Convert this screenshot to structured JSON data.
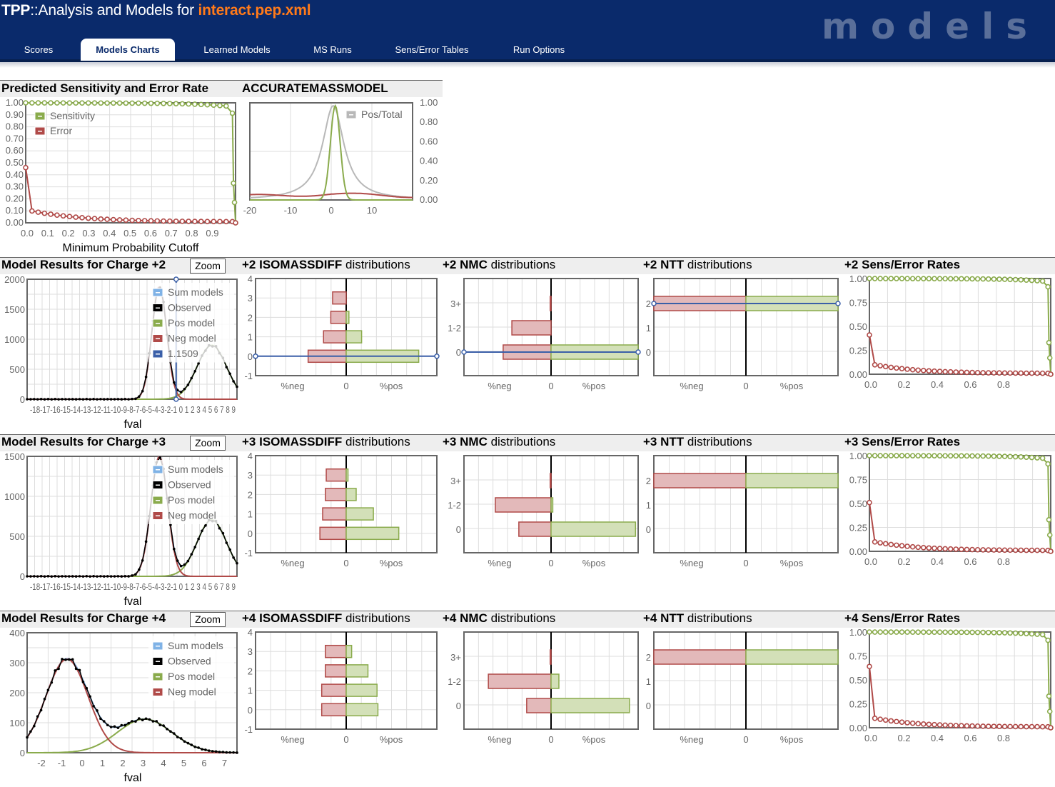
{
  "header": {
    "tpp": "TPP",
    "sep": "::",
    "title_prefix": "Analysis and Models for ",
    "file": "interact.pep.xml",
    "brand": "models"
  },
  "tabs": [
    {
      "label": "Scores"
    },
    {
      "label": "Models Charts",
      "active": true
    },
    {
      "label": "Learned Models"
    },
    {
      "label": "MS Runs"
    },
    {
      "label": "Sens/Error Tables"
    },
    {
      "label": "Run Options"
    }
  ],
  "colors": {
    "header_bg": "#0a2a6b",
    "file_orange": "#ff7a1a",
    "green": "#8aab4c",
    "red": "#b04a48",
    "blue": "#3a5fa8",
    "gray": "#b8b8b8",
    "sum_blue": "#7fb2e6",
    "green_fill": "#d3e0b8",
    "red_fill": "#e3b9ba"
  },
  "top": {
    "sens_title": "Predicted Sensitivity and Error Rate",
    "sens_legend": [
      "Sensitivity",
      "Error"
    ],
    "sens_xlabel": "Minimum Probability Cutoff",
    "sens_yticks": [
      "1.00",
      "0.90",
      "0.80",
      "0.70",
      "0.60",
      "0.50",
      "0.40",
      "0.30",
      "0.20",
      "0.10",
      "0.00"
    ],
    "sens_xticks": [
      "0.0",
      "0.1",
      "0.2",
      "0.3",
      "0.4",
      "0.5",
      "0.6",
      "0.7",
      "0.8",
      "0.9"
    ],
    "am_title": "ACCURATEMASSMODEL",
    "am_legend": "Pos/Total",
    "am_yticks": [
      "1.00",
      "0.80",
      "0.60",
      "0.40",
      "0.20",
      "0.00"
    ],
    "am_xticks": [
      "-20",
      "-10",
      "0",
      "10"
    ]
  },
  "rows": [
    {
      "charge": "+2",
      "title": "Model Results for Charge +2",
      "zoom": "Zoom",
      "model_yticks": [
        "2000",
        "1500",
        "1000",
        "500",
        "0"
      ],
      "model_xticks": "-18-17-16-15-14-13-12-11-10-9-8-7-6-5-4-3-2-1 0 1 2 3 4 5 6 7 8 9",
      "model_xlabel": "fval",
      "legend": [
        "Sum models",
        "Observed",
        "Pos model",
        "Neg model",
        "1.1509"
      ],
      "iso_label": "ISOMASSDIFF",
      "nmc_label": "NMC",
      "ntt_label": "NTT",
      "dist_word": "distributions",
      "sens_label": "Sens/Error Rates",
      "iso_yticks": [
        "4",
        "3",
        "2",
        "1",
        "0",
        "-1"
      ],
      "nmc_yticks": [
        "3+",
        "1-2",
        "0"
      ],
      "ntt_yticks": [
        "2",
        "1",
        "0"
      ],
      "bar_xticks": [
        "%neg",
        "0",
        "%pos"
      ],
      "sens_yticks": [
        "1.00",
        "0.75",
        "0.50",
        "0.25",
        "0.00"
      ],
      "sens_xticks": [
        "0.0",
        "0.2",
        "0.4",
        "0.6",
        "0.8"
      ]
    },
    {
      "charge": "+3",
      "title": "Model Results for Charge +3",
      "zoom": "Zoom",
      "model_yticks": [
        "1500",
        "1000",
        "500",
        "0"
      ],
      "model_xticks": "-18-17-16-15-14-13-12-11-10-9-8-7-6-5-4-3-2-1 0 1 2 3 4 5 6 7 8 9",
      "model_xlabel": "fval",
      "legend": [
        "Sum models",
        "Observed",
        "Pos model",
        "Neg model"
      ],
      "iso_label": "ISOMASSDIFF",
      "nmc_label": "NMC",
      "ntt_label": "NTT",
      "dist_word": "distributions",
      "sens_label": "Sens/Error Rates",
      "iso_yticks": [
        "4",
        "3",
        "2",
        "1",
        "0",
        "-1"
      ],
      "nmc_yticks": [
        "3+",
        "1-2",
        "0"
      ],
      "ntt_yticks": [
        "2",
        "1",
        "0"
      ],
      "bar_xticks": [
        "%neg",
        "0",
        "%pos"
      ],
      "sens_yticks": [
        "1.00",
        "0.75",
        "0.50",
        "0.25",
        "0.00"
      ],
      "sens_xticks": [
        "0.0",
        "0.2",
        "0.4",
        "0.6",
        "0.8"
      ]
    },
    {
      "charge": "+4",
      "title": "Model Results for Charge +4",
      "zoom": "Zoom",
      "model_yticks": [
        "400",
        "300",
        "200",
        "100",
        "0"
      ],
      "model_xticks": [
        "-2",
        "-1",
        "0",
        "1",
        "2",
        "3",
        "4",
        "5",
        "6",
        "7"
      ],
      "model_xlabel": "fval",
      "legend": [
        "Sum models",
        "Observed",
        "Pos model",
        "Neg model"
      ],
      "iso_label": "ISOMASSDIFF",
      "nmc_label": "NMC",
      "ntt_label": "NTT",
      "dist_word": "distributions",
      "sens_label": "Sens/Error Rates",
      "iso_yticks": [
        "4",
        "3",
        "2",
        "1",
        "0",
        "-1"
      ],
      "nmc_yticks": [
        "3+",
        "1-2",
        "0"
      ],
      "ntt_yticks": [
        "2",
        "1",
        "0"
      ],
      "bar_xticks": [
        "%neg",
        "0",
        "%pos"
      ],
      "sens_yticks": [
        "1.00",
        "0.75",
        "0.50",
        "0.25",
        "0.00"
      ],
      "sens_xticks": [
        "0.0",
        "0.2",
        "0.4",
        "0.6",
        "0.8"
      ]
    }
  ]
}
